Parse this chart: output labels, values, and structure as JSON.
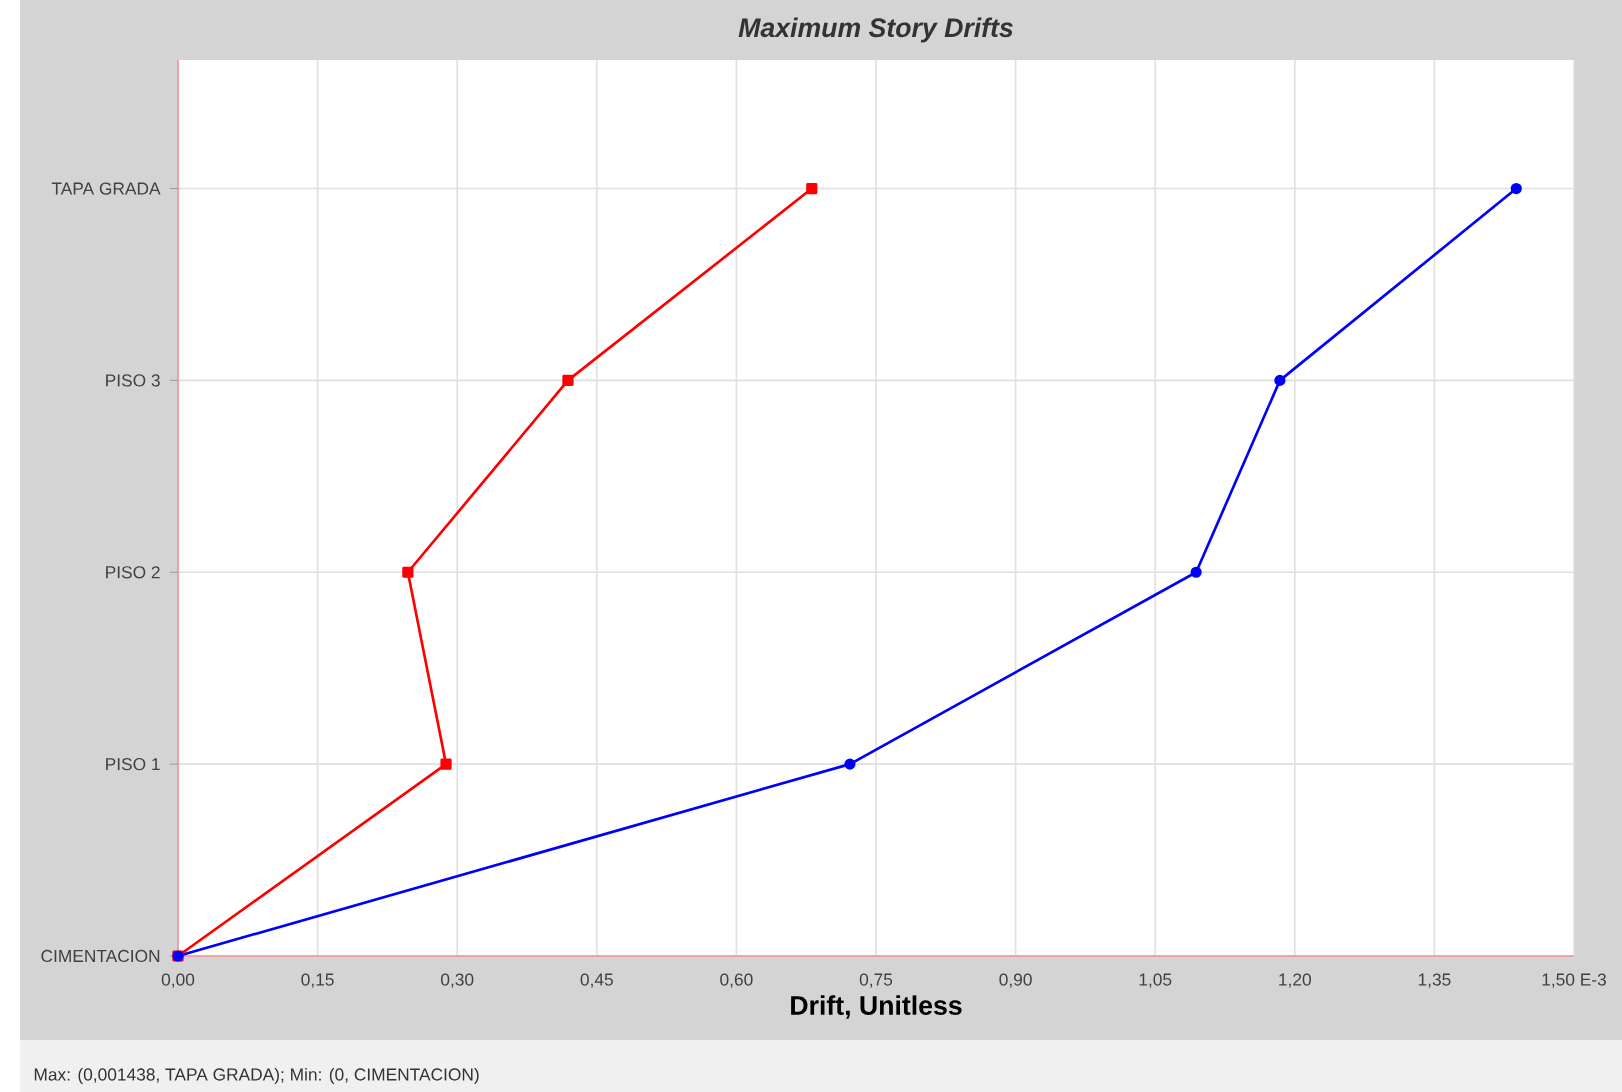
{
  "chart_data": {
    "type": "line",
    "orientation": "horizontal",
    "title": "Maximum Story Drifts",
    "xlabel": "Drift, Unitless",
    "annotations": [
      "Max: (0,001438, TAPA GRADA);   Min: (0, CIMENTACION)"
    ],
    "xlim": [
      0,
      1.5
    ],
    "xticks": [
      {
        "value": 0,
        "label": "0,00"
      },
      {
        "value": 0.15,
        "label": "0,15"
      },
      {
        "value": 0.3,
        "label": "0,30"
      },
      {
        "value": 0.45,
        "label": "0,45"
      },
      {
        "value": 0.6,
        "label": "0,60"
      },
      {
        "value": 0.75,
        "label": "0,75"
      },
      {
        "value": 0.9,
        "label": "0,90"
      },
      {
        "value": 1.05,
        "label": "1,05"
      },
      {
        "value": 1.2,
        "label": "1,20"
      },
      {
        "value": 1.35,
        "label": "1,35"
      },
      {
        "value": 1.5,
        "label": "1,50 E-3"
      }
    ],
    "categories": [
      "TAPA GRADA",
      "PISO 3",
      "PISO 2",
      "PISO 1",
      "CIMENTACION"
    ],
    "grid": true,
    "series": [
      {
        "color": "#ff0000",
        "marker": "square",
        "values": [
          0.681,
          0.419,
          0.247,
          0.288,
          0
        ]
      },
      {
        "color": "#0000ff",
        "marker": "circle",
        "values": [
          1.438,
          1.184,
          1.094,
          0.722,
          0
        ]
      }
    ]
  }
}
